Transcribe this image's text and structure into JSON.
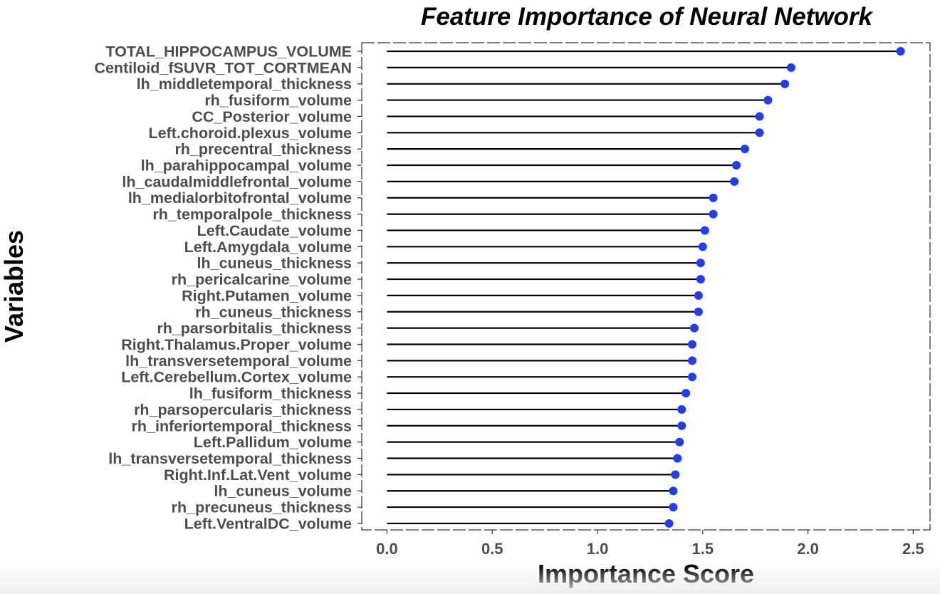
{
  "chart_data": {
    "type": "lollipop",
    "title": "Feature Importance of Neural Network",
    "xlabel": "Importance Score",
    "ylabel": "Variables",
    "xlim": [
      -0.12,
      2.58
    ],
    "xticks": [
      "0.0",
      "0.5",
      "1.0",
      "1.5",
      "2.0",
      "2.5"
    ],
    "xtick_values": [
      0,
      0.5,
      1.0,
      1.5,
      2.0,
      2.5
    ],
    "grid": false,
    "point_color": "#1f3cff",
    "stem_color": "#000000",
    "categories": [
      "TOTAL_HIPPOCAMPUS_VOLUME",
      "Centiloid_fSUVR_TOT_CORTMEAN",
      "lh_middletemporal_thickness",
      "rh_fusiform_volume",
      "CC_Posterior_volume",
      "Left.choroid.plexus_volume",
      "rh_precentral_thickness",
      "lh_parahippocampal_volume",
      "lh_caudalmiddlefrontal_volume",
      "lh_medialorbitofrontal_volume",
      "rh_temporalpole_thickness",
      "Left.Caudate_volume",
      "Left.Amygdala_volume",
      "lh_cuneus_thickness",
      "rh_pericalcarine_volume",
      "Right.Putamen_volume",
      "rh_cuneus_thickness",
      "rh_parsorbitalis_thickness",
      "Right.Thalamus.Proper_volume",
      "lh_transversetemporal_volume",
      "Left.Cerebellum.Cortex_volume",
      "lh_fusiform_thickness",
      "rh_parsopercularis_thickness",
      "rh_inferiortemporal_thickness",
      "Left.Pallidum_volume",
      "lh_transversetemporal_thickness",
      "Right.Inf.Lat.Vent_volume",
      "lh_cuneus_volume",
      "rh_precuneus_thickness",
      "Left.VentralDC_volume"
    ],
    "values": [
      2.44,
      1.92,
      1.89,
      1.81,
      1.77,
      1.77,
      1.7,
      1.66,
      1.65,
      1.55,
      1.55,
      1.51,
      1.5,
      1.49,
      1.49,
      1.48,
      1.48,
      1.46,
      1.45,
      1.45,
      1.45,
      1.42,
      1.4,
      1.4,
      1.39,
      1.38,
      1.37,
      1.36,
      1.36,
      1.34
    ]
  }
}
